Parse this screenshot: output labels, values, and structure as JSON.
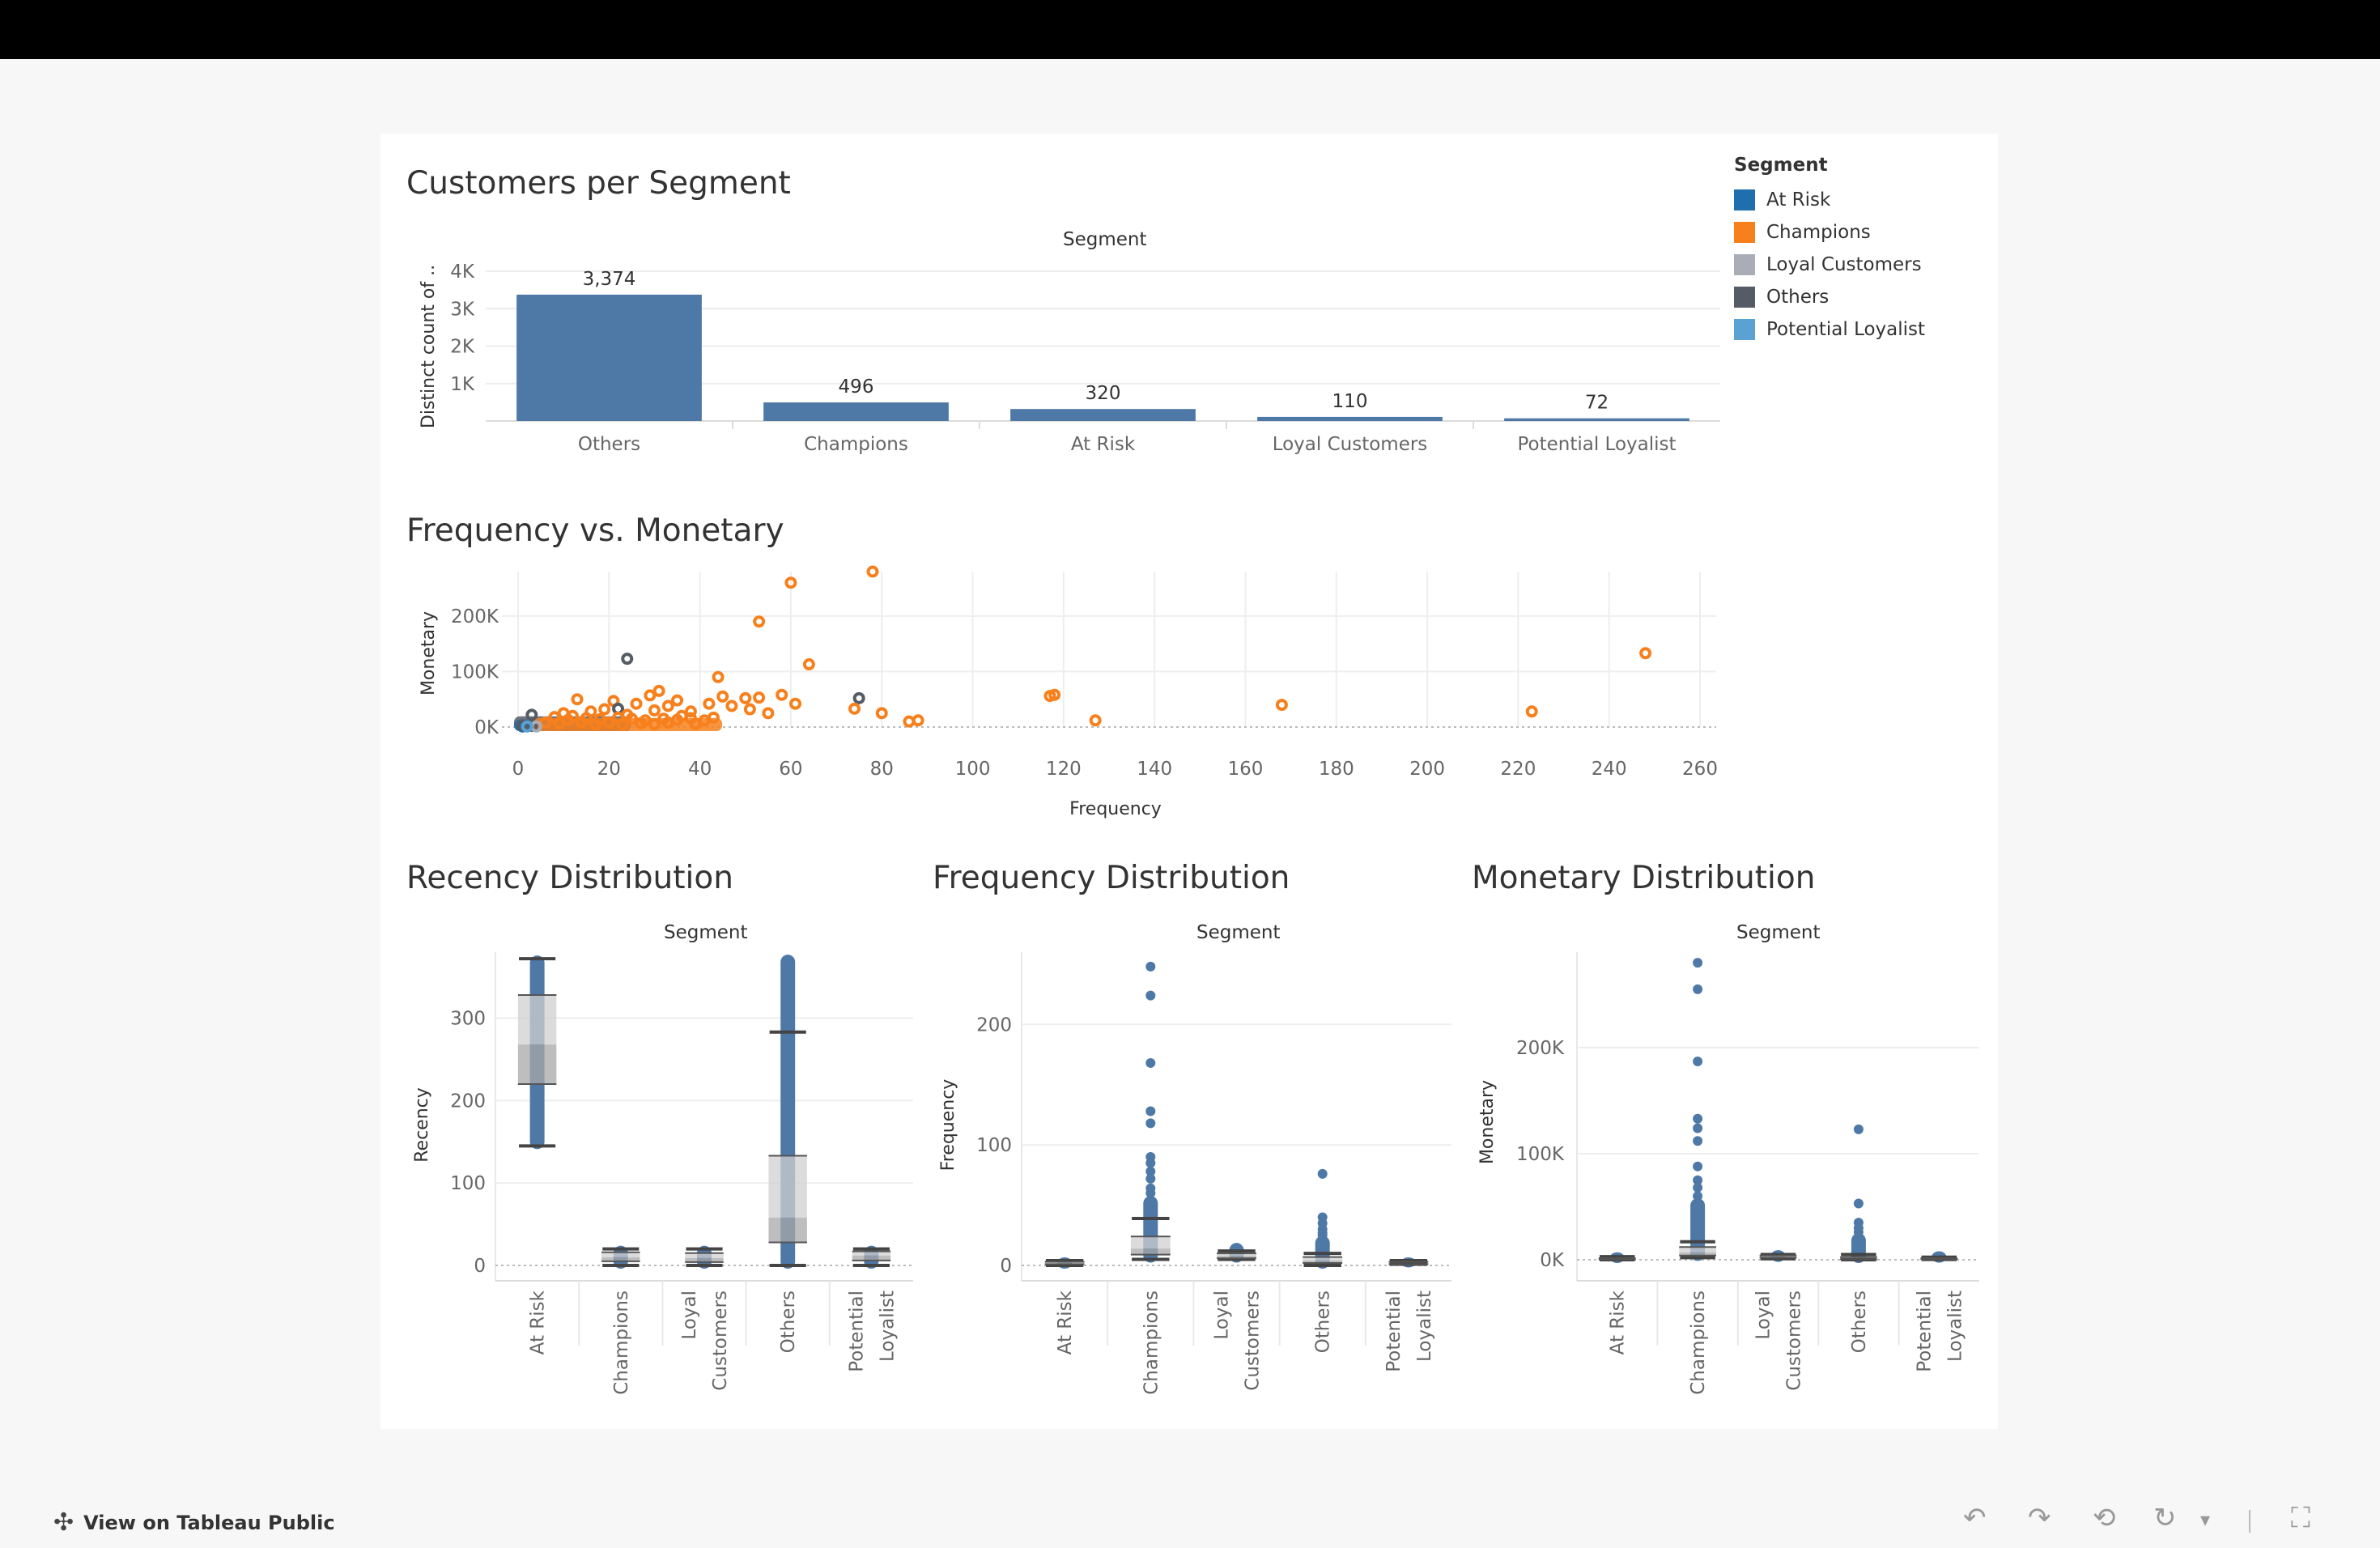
{
  "footer": {
    "view_link": "View on Tableau Public",
    "buttons": [
      {
        "name": "undo-icon",
        "glyph": "↶"
      },
      {
        "name": "redo-icon",
        "glyph": "↷"
      },
      {
        "name": "revert-icon",
        "glyph": "⟲"
      },
      {
        "name": "refresh-icon",
        "glyph": "↻"
      },
      {
        "name": "pause-dropdown-icon",
        "glyph": "▾"
      },
      {
        "name": "fullscreen-icon",
        "glyph": "⛶"
      }
    ]
  },
  "legend": {
    "title": "Segment",
    "items": [
      {
        "label": "At Risk",
        "color": "#1f6fae"
      },
      {
        "label": "Champions",
        "color": "#f7801c"
      },
      {
        "label": "Loyal Customers",
        "color": "#a9adb6"
      },
      {
        "label": "Others",
        "color": "#555c66"
      },
      {
        "label": "Potential Loyalist",
        "color": "#5aa1d4"
      }
    ]
  },
  "titles": {
    "customers": "Customers per Segment",
    "scatter": "Frequency vs. Monetary",
    "recency": "Recency Distribution",
    "frequency": "Frequency Distribution",
    "monetary": "Monetary Distribution"
  },
  "chart_data": [
    {
      "type": "bar",
      "title": "Customers per Segment",
      "header": "Segment",
      "ylabel": "Distinct count of ..",
      "categories": [
        "Others",
        "Champions",
        "At Risk",
        "Loyal Customers",
        "Potential Loyalist"
      ],
      "values": [
        3374,
        496,
        320,
        110,
        72
      ],
      "value_labels": [
        "3,374",
        "496",
        "320",
        "110",
        "72"
      ],
      "ylim": [
        0,
        4000
      ],
      "yticks": [
        1000,
        2000,
        3000,
        4000
      ],
      "ytick_labels": [
        "1K",
        "2K",
        "3K",
        "4K"
      ],
      "color": "#4e79a7",
      "grid": true
    },
    {
      "type": "scatter",
      "title": "Frequency vs. Monetary",
      "xlabel": "Frequency",
      "ylabel": "Monetary",
      "xlim": [
        0,
        260
      ],
      "ylim": [
        0,
        280000
      ],
      "xticks": [
        0,
        20,
        40,
        60,
        80,
        100,
        120,
        140,
        160,
        180,
        200,
        220,
        240,
        260
      ],
      "yticks": [
        0,
        100000,
        200000
      ],
      "ytick_labels": [
        "0K",
        "100K",
        "200K"
      ],
      "grid": true,
      "points": [
        {
          "x": 78,
          "y": 280000,
          "s": "Champions"
        },
        {
          "x": 60,
          "y": 260000,
          "s": "Champions"
        },
        {
          "x": 53,
          "y": 190000,
          "s": "Champions"
        },
        {
          "x": 64,
          "y": 113000,
          "s": "Champions"
        },
        {
          "x": 248,
          "y": 133000,
          "s": "Champions"
        },
        {
          "x": 24,
          "y": 123000,
          "s": "Others"
        },
        {
          "x": 44,
          "y": 90000,
          "s": "Champions"
        },
        {
          "x": 117,
          "y": 56000,
          "s": "Champions"
        },
        {
          "x": 118,
          "y": 58000,
          "s": "Champions"
        },
        {
          "x": 168,
          "y": 40000,
          "s": "Champions"
        },
        {
          "x": 223,
          "y": 28000,
          "s": "Champions"
        },
        {
          "x": 75,
          "y": 52000,
          "s": "Others"
        },
        {
          "x": 58,
          "y": 58000,
          "s": "Champions"
        },
        {
          "x": 61,
          "y": 42000,
          "s": "Champions"
        },
        {
          "x": 74,
          "y": 33000,
          "s": "Champions"
        },
        {
          "x": 80,
          "y": 25000,
          "s": "Champions"
        },
        {
          "x": 127,
          "y": 12000,
          "s": "Champions"
        },
        {
          "x": 86,
          "y": 10000,
          "s": "Champions"
        },
        {
          "x": 88,
          "y": 12000,
          "s": "Champions"
        },
        {
          "x": 50,
          "y": 52000,
          "s": "Champions"
        },
        {
          "x": 53,
          "y": 53000,
          "s": "Champions"
        },
        {
          "x": 47,
          "y": 38000,
          "s": "Champions"
        },
        {
          "x": 51,
          "y": 32000,
          "s": "Champions"
        },
        {
          "x": 55,
          "y": 25000,
          "s": "Champions"
        },
        {
          "x": 45,
          "y": 55000,
          "s": "Champions"
        },
        {
          "x": 42,
          "y": 42000,
          "s": "Champions"
        },
        {
          "x": 38,
          "y": 28000,
          "s": "Champions"
        },
        {
          "x": 31,
          "y": 65000,
          "s": "Champions"
        },
        {
          "x": 29,
          "y": 57000,
          "s": "Champions"
        },
        {
          "x": 35,
          "y": 48000,
          "s": "Champions"
        },
        {
          "x": 13,
          "y": 50000,
          "s": "Champions"
        },
        {
          "x": 21,
          "y": 47000,
          "s": "Champions"
        },
        {
          "x": 26,
          "y": 42000,
          "s": "Champions"
        },
        {
          "x": 33,
          "y": 38000,
          "s": "Champions"
        },
        {
          "x": 22,
          "y": 33000,
          "s": "Others"
        },
        {
          "x": 30,
          "y": 30000,
          "s": "Champions"
        },
        {
          "x": 19,
          "y": 32000,
          "s": "Champions"
        },
        {
          "x": 16,
          "y": 28000,
          "s": "Champions"
        },
        {
          "x": 10,
          "y": 25000,
          "s": "Champions"
        },
        {
          "x": 3,
          "y": 22000,
          "s": "Others"
        },
        {
          "x": 8,
          "y": 18000,
          "s": "Champions"
        },
        {
          "x": 12,
          "y": 20000,
          "s": "Champions"
        },
        {
          "x": 15,
          "y": 16000,
          "s": "Champions"
        },
        {
          "x": 18,
          "y": 14000,
          "s": "Champions"
        },
        {
          "x": 22,
          "y": 17000,
          "s": "Champions"
        },
        {
          "x": 25,
          "y": 15000,
          "s": "Champions"
        },
        {
          "x": 28,
          "y": 12000,
          "s": "Champions"
        },
        {
          "x": 32,
          "y": 15000,
          "s": "Champions"
        },
        {
          "x": 35,
          "y": 13000,
          "s": "Champions"
        },
        {
          "x": 38,
          "y": 16000,
          "s": "Champions"
        },
        {
          "x": 41,
          "y": 12000,
          "s": "Champions"
        },
        {
          "x": 43,
          "y": 17000,
          "s": "Champions"
        },
        {
          "x": 36,
          "y": 20000,
          "s": "Champions"
        },
        {
          "x": 24,
          "y": 22000,
          "s": "Champions"
        },
        {
          "x": 11,
          "y": 13000,
          "s": "Champions"
        },
        {
          "x": 14,
          "y": 9000,
          "s": "Champions"
        },
        {
          "x": 20,
          "y": 8000,
          "s": "Champions"
        },
        {
          "x": 27,
          "y": 7000,
          "s": "Champions"
        },
        {
          "x": 33,
          "y": 8000,
          "s": "Champions"
        },
        {
          "x": 39,
          "y": 6000,
          "s": "Champions"
        },
        {
          "x": 9,
          "y": 7000,
          "s": "Champions"
        },
        {
          "x": 6,
          "y": 8000,
          "s": "Champions"
        },
        {
          "x": 17,
          "y": 5000,
          "s": "Champions"
        },
        {
          "x": 23,
          "y": 4000,
          "s": "Champions"
        },
        {
          "x": 30,
          "y": 5000,
          "s": "Champions"
        },
        {
          "x": 1,
          "y": 1000,
          "s": "At Risk"
        },
        {
          "x": 2,
          "y": 2000,
          "s": "At Risk"
        },
        {
          "x": 1,
          "y": 3000,
          "s": "Others"
        },
        {
          "x": 3,
          "y": 2000,
          "s": "Others"
        },
        {
          "x": 4,
          "y": 1000,
          "s": "Loyal Customers"
        },
        {
          "x": 2,
          "y": 1000,
          "s": "Potential Loyalist"
        }
      ],
      "dense_bands": [
        {
          "s": "Others",
          "x": [
            0,
            24
          ],
          "y": [
            0,
            12000
          ]
        },
        {
          "s": "At Risk",
          "x": [
            0,
            6
          ],
          "y": [
            0,
            6000
          ]
        },
        {
          "s": "Champions",
          "x": [
            4,
            44
          ],
          "y": [
            0,
            9000
          ]
        }
      ]
    },
    {
      "type": "box",
      "title": "Recency Distribution",
      "header": "Segment",
      "ylabel": "Recency",
      "categories": [
        "At Risk",
        "Champions",
        "Loyal Customers",
        "Others",
        "Potential Loyalist"
      ],
      "category_labels": [
        [
          "At Risk"
        ],
        [
          "Champions"
        ],
        [
          "Loyal",
          "Customers"
        ],
        [
          "Others"
        ],
        [
          "Potential",
          "Loyalist"
        ]
      ],
      "ylim": [
        0,
        380
      ],
      "yticks": [
        0,
        100,
        200,
        300
      ],
      "boxes": [
        {
          "min": 145,
          "q1": 220,
          "median": 268,
          "q3": 328,
          "max": 372,
          "range": [
            145,
            372
          ]
        },
        {
          "min": 0,
          "q1": 5,
          "median": 10,
          "q3": 16,
          "max": 20,
          "range": [
            0,
            20
          ]
        },
        {
          "min": 0,
          "q1": 4,
          "median": 9,
          "q3": 15,
          "max": 20,
          "range": [
            0,
            20
          ]
        },
        {
          "min": 0,
          "q1": 28,
          "median": 58,
          "q3": 133,
          "max": 283,
          "range": [
            0,
            373
          ]
        },
        {
          "min": 0,
          "q1": 6,
          "median": 12,
          "q3": 17,
          "max": 20,
          "range": [
            0,
            20
          ]
        }
      ]
    },
    {
      "type": "box",
      "title": "Frequency Distribution",
      "header": "Segment",
      "ylabel": "Frequency",
      "categories": [
        "At Risk",
        "Champions",
        "Loyal Customers",
        "Others",
        "Potential Loyalist"
      ],
      "category_labels": [
        [
          "At Risk"
        ],
        [
          "Champions"
        ],
        [
          "Loyal",
          "Customers"
        ],
        [
          "Others"
        ],
        [
          "Potential",
          "Loyalist"
        ]
      ],
      "ylim": [
        0,
        260
      ],
      "yticks": [
        0,
        100,
        200
      ],
      "boxes": [
        {
          "min": 0,
          "q1": 1,
          "median": 2,
          "q3": 3,
          "max": 4,
          "range": [
            0,
            4
          ],
          "outliers": []
        },
        {
          "min": 5,
          "q1": 9,
          "median": 14,
          "q3": 24,
          "max": 39,
          "range": [
            5,
            55
          ],
          "outliers": [
            248,
            224,
            168,
            128,
            118,
            90,
            85,
            78,
            72,
            64,
            60
          ]
        },
        {
          "min": 5,
          "q1": 6,
          "median": 8,
          "q3": 10,
          "max": 12,
          "range": [
            5,
            16
          ],
          "outliers": []
        },
        {
          "min": 0,
          "q1": 2,
          "median": 4,
          "q3": 7,
          "max": 10,
          "range": [
            0,
            22
          ],
          "outliers": [
            76,
            40,
            35,
            30,
            27,
            25
          ]
        },
        {
          "min": 1,
          "q1": 1,
          "median": 2,
          "q3": 3,
          "max": 4,
          "range": [
            1,
            4
          ],
          "outliers": []
        }
      ]
    },
    {
      "type": "box",
      "title": "Monetary Distribution",
      "header": "Segment",
      "ylabel": "Monetary",
      "categories": [
        "At Risk",
        "Champions",
        "Loyal Customers",
        "Others",
        "Potential Loyalist"
      ],
      "category_labels": [
        [
          "At Risk"
        ],
        [
          "Champions"
        ],
        [
          "Loyal",
          "Customers"
        ],
        [
          "Others"
        ],
        [
          "Potential",
          "Loyalist"
        ]
      ],
      "ylim": [
        0,
        290000
      ],
      "yticks": [
        0,
        100000,
        200000
      ],
      "ytick_labels": [
        "0K",
        "100K",
        "200K"
      ],
      "boxes": [
        {
          "min": 0,
          "q1": 300,
          "median": 800,
          "q3": 1500,
          "max": 3000,
          "range": [
            0,
            4000
          ],
          "outliers": []
        },
        {
          "min": 2000,
          "q1": 4000,
          "median": 7000,
          "q3": 12000,
          "max": 17000,
          "range": [
            2000,
            55000
          ],
          "outliers": [
            280000,
            255000,
            187000,
            133000,
            124000,
            112000,
            88000,
            75000,
            68000,
            60000
          ]
        },
        {
          "min": 1000,
          "q1": 2000,
          "median": 3000,
          "q3": 4000,
          "max": 5000,
          "range": [
            1000,
            6000
          ],
          "outliers": []
        },
        {
          "min": 0,
          "q1": 500,
          "median": 1200,
          "q3": 2500,
          "max": 5000,
          "range": [
            0,
            22000
          ],
          "outliers": [
            123000,
            53000,
            35000,
            30000,
            26000
          ]
        },
        {
          "min": 300,
          "q1": 600,
          "median": 900,
          "q3": 1500,
          "max": 2500,
          "range": [
            300,
            5000
          ],
          "outliers": []
        }
      ]
    }
  ]
}
